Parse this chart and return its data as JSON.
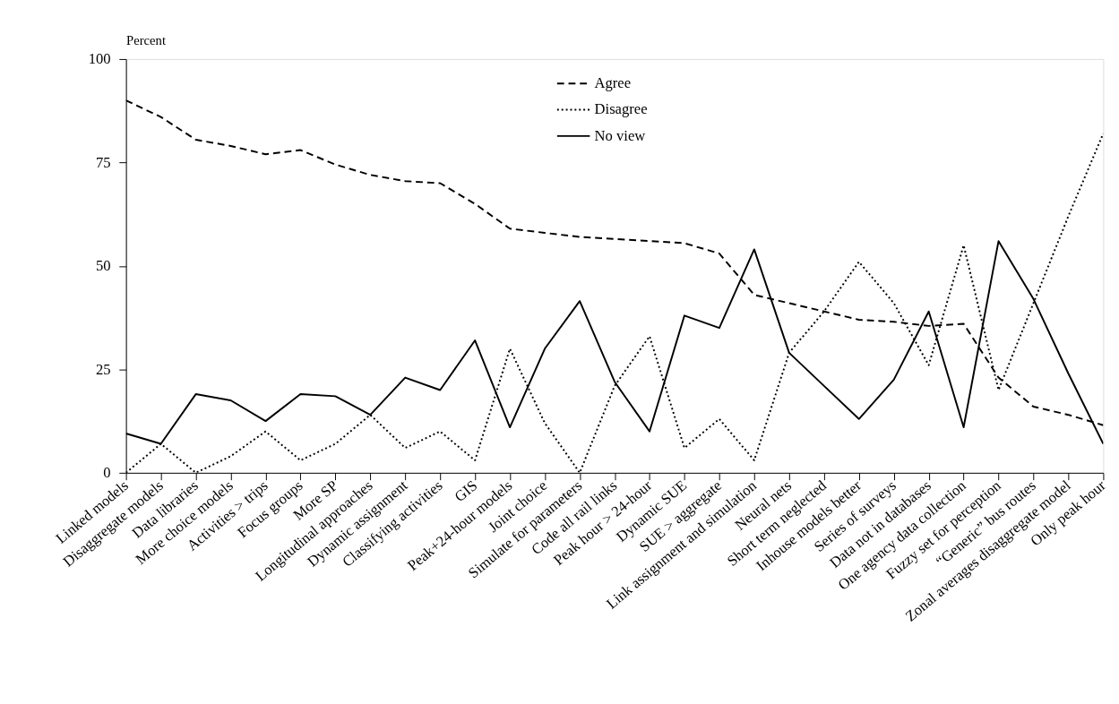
{
  "chart_data": {
    "type": "line",
    "ylabel": "Percent",
    "categories": [
      "Linked models",
      "Disaggregate models",
      "Data libraries",
      "More choice models",
      "Activities > trips",
      "Focus groups",
      "More SP",
      "Longitudinal approaches",
      "Dynamic assignment",
      "Classifying activities",
      "GIS",
      "Peak+24-hour models",
      "Joint choice",
      "Simulate for parameters",
      "Code all rail links",
      "Peak hour > 24-hour",
      "Dynamic SUE",
      "SUE > aggregate",
      "Link assignment and simulation",
      "Neural nets",
      "Short term neglected",
      "Inhouse models better",
      "Series of surveys",
      "Data not in databases",
      "One agency data collection",
      "Fuzzy set for perception",
      "“Generic” bus routes",
      "Zonal averages disaggregate model",
      "Only peak hour"
    ],
    "series": [
      {
        "name": "Agree",
        "color": "#000000",
        "line_style": "dashed",
        "values": [
          90,
          86,
          80.5,
          79,
          77,
          78,
          74.5,
          72,
          70.5,
          70,
          65,
          59,
          58,
          57,
          56.5,
          56,
          55.5,
          53,
          43,
          41,
          39,
          37,
          36.5,
          35.5,
          36,
          23,
          16,
          14,
          11.5
        ]
      },
      {
        "name": "Disagree",
        "color": "#000000",
        "line_style": "dotted",
        "values": [
          0,
          7,
          0,
          4,
          10,
          3,
          7,
          14,
          6,
          10,
          3,
          30,
          12,
          0,
          21,
          33,
          6,
          13,
          3,
          29,
          39,
          51,
          41,
          26,
          55,
          20,
          41,
          62,
          82
        ]
      },
      {
        "name": "No view",
        "color": "#000000",
        "line_style": "solid",
        "values": [
          9.5,
          7,
          19,
          17.5,
          12.5,
          19,
          18.5,
          14,
          23,
          20,
          32,
          11,
          30,
          41.5,
          22,
          10,
          38,
          35,
          54,
          29,
          21,
          13,
          22.5,
          39,
          11,
          56,
          42,
          24,
          7
        ]
      }
    ],
    "ylim": [
      0,
      100
    ],
    "yticks": [
      0,
      25,
      50,
      75,
      100
    ],
    "grid": false,
    "legend": "top",
    "marker": "none"
  }
}
